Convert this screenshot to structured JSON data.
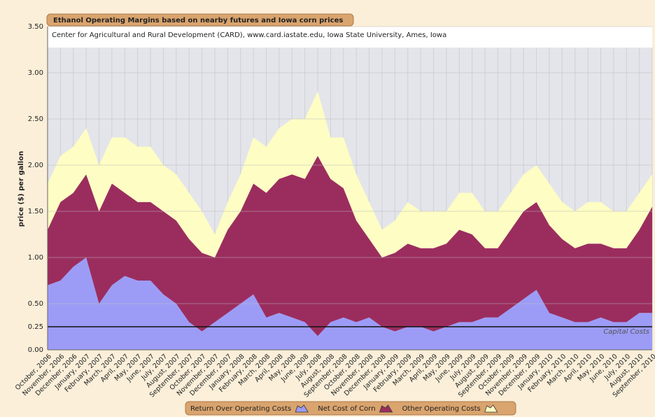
{
  "chart_data": {
    "type": "stacked_area",
    "title": "Ethanol Operating Margins based on nearby futures and Iowa corn prices",
    "subtitle": "Center for Agricultural and Rural Development (CARD), www.card.iastate.edu, Iowa State University, Ames, Iowa",
    "y_label": "price ($) per gallon",
    "categories": [
      "October, 2006",
      "November, 2006",
      "December, 2006",
      "January, 2007",
      "February, 2007",
      "March, 2007",
      "April, 2007",
      "May, 2007",
      "June, 2007",
      "July, 2007",
      "August, 2007",
      "September, 2007",
      "October, 2007",
      "November, 2007",
      "December, 2007",
      "January, 2008",
      "February, 2008",
      "March, 2008",
      "April, 2008",
      "May, 2008",
      "June, 2008",
      "July, 2008",
      "August, 2008",
      "September, 2008",
      "October, 2008",
      "November, 2008",
      "December, 2008",
      "January, 2009",
      "February, 2009",
      "March, 2009",
      "April, 2009",
      "May, 2009",
      "June, 2009",
      "July, 2009",
      "August, 2009",
      "September, 2009",
      "October, 2009",
      "November, 2009",
      "December, 2009",
      "January, 2010",
      "February, 2010",
      "March, 2010",
      "April, 2010",
      "May, 2010",
      "June, 2010",
      "July, 2010",
      "August, 2010",
      "September, 2010"
    ],
    "series": [
      {
        "name": "Return Over Operating Costs",
        "color": "#9c9cf7",
        "values": [
          0.7,
          0.75,
          0.9,
          1.0,
          0.5,
          0.7,
          0.8,
          0.75,
          0.75,
          0.6,
          0.5,
          0.3,
          0.2,
          0.3,
          0.4,
          0.5,
          0.6,
          0.35,
          0.4,
          0.35,
          0.3,
          0.15,
          0.3,
          0.35,
          0.3,
          0.35,
          0.25,
          0.2,
          0.25,
          0.25,
          0.2,
          0.25,
          0.3,
          0.3,
          0.35,
          0.35,
          0.45,
          0.55,
          0.65,
          0.4,
          0.35,
          0.3,
          0.3,
          0.35,
          0.3,
          0.3,
          0.4,
          0.4
        ]
      },
      {
        "name": "Net Cost of Corn",
        "color": "#9b2d5e",
        "values": [
          0.6,
          0.85,
          0.8,
          0.9,
          1.0,
          1.1,
          0.9,
          0.85,
          0.85,
          0.9,
          0.9,
          0.9,
          0.85,
          0.7,
          0.9,
          1.0,
          1.2,
          1.35,
          1.45,
          1.55,
          1.55,
          1.95,
          1.55,
          1.4,
          1.1,
          0.85,
          0.75,
          0.85,
          0.9,
          0.85,
          0.9,
          0.9,
          1.0,
          0.95,
          0.75,
          0.75,
          0.85,
          0.95,
          0.95,
          0.95,
          0.85,
          0.8,
          0.85,
          0.8,
          0.8,
          0.8,
          0.9,
          1.15
        ]
      },
      {
        "name": "Other Operating Costs",
        "color": "#fdfdc4",
        "values": [
          0.5,
          0.5,
          0.5,
          0.5,
          0.5,
          0.5,
          0.6,
          0.6,
          0.6,
          0.5,
          0.5,
          0.5,
          0.45,
          0.25,
          0.3,
          0.4,
          0.5,
          0.5,
          0.55,
          0.6,
          0.65,
          0.7,
          0.45,
          0.55,
          0.5,
          0.4,
          0.3,
          0.35,
          0.45,
          0.4,
          0.4,
          0.35,
          0.4,
          0.45,
          0.4,
          0.4,
          0.4,
          0.4,
          0.4,
          0.45,
          0.4,
          0.4,
          0.45,
          0.45,
          0.4,
          0.4,
          0.4,
          0.35
        ]
      }
    ],
    "ylim": [
      0,
      3.5
    ],
    "yticks": [
      {
        "value": 0,
        "label": "0.00"
      },
      {
        "value": 0.25,
        "label": "0.25"
      },
      {
        "value": 0.5,
        "label": "0.50"
      },
      {
        "value": 1,
        "label": "1.00"
      },
      {
        "value": 1.5,
        "label": "1.50"
      },
      {
        "value": 2,
        "label": "2.00"
      },
      {
        "value": 2.5,
        "label": "2.50"
      },
      {
        "value": 3,
        "label": "3.00"
      },
      {
        "value": 3.5,
        "label": "3.50"
      }
    ],
    "reference_line": {
      "value": 0.25,
      "label": "Capital Costs"
    },
    "grid": true
  }
}
